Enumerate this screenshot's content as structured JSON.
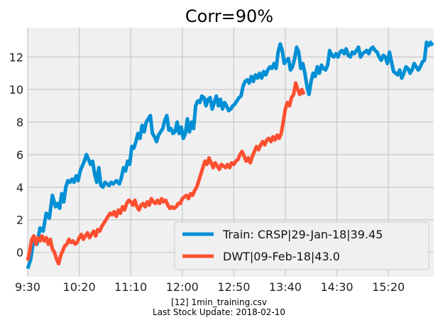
{
  "chart_data": {
    "type": "line",
    "title": "Corr=90%",
    "xlabel": "",
    "ylabel": "",
    "x_tick_labels": [
      "9:30",
      "10:20",
      "11:10",
      "12:00",
      "12:50",
      "13:40",
      "14:30",
      "15:20"
    ],
    "x_tick_minutes": [
      0,
      50,
      100,
      150,
      200,
      250,
      300,
      350
    ],
    "xlim": [
      0,
      394
    ],
    "y_ticks": [
      0,
      2,
      4,
      6,
      8,
      10,
      12
    ],
    "ylim": [
      -1.5,
      13.8
    ],
    "grid": true,
    "legend_position": "lower-right",
    "series": [
      {
        "name": "Train: CRSP|29-Jan-18|39.45",
        "color": "#008fd5",
        "points": [
          [
            0,
            -1.0
          ],
          [
            3,
            -0.4
          ],
          [
            6,
            0.9
          ],
          [
            9,
            0.5
          ],
          [
            12,
            1.5
          ],
          [
            15,
            1.3
          ],
          [
            18,
            2.4
          ],
          [
            21,
            2.1
          ],
          [
            24,
            3.5
          ],
          [
            27,
            2.8
          ],
          [
            29,
            3.0
          ],
          [
            31,
            2.7
          ],
          [
            33,
            3.6
          ],
          [
            35,
            3.1
          ],
          [
            37,
            4.0
          ],
          [
            39,
            4.4
          ],
          [
            41,
            4.3
          ],
          [
            43,
            4.5
          ],
          [
            45,
            4.3
          ],
          [
            47,
            4.7
          ],
          [
            49,
            4.4
          ],
          [
            51,
            5.0
          ],
          [
            53,
            5.3
          ],
          [
            55,
            5.6
          ],
          [
            57,
            6.0
          ],
          [
            59,
            5.7
          ],
          [
            61,
            5.4
          ],
          [
            63,
            5.6
          ],
          [
            65,
            4.8
          ],
          [
            67,
            4.3
          ],
          [
            69,
            5.2
          ],
          [
            71,
            4.1
          ],
          [
            73,
            4.0
          ],
          [
            75,
            4.3
          ],
          [
            77,
            4.2
          ],
          [
            79,
            4.1
          ],
          [
            81,
            4.3
          ],
          [
            83,
            4.2
          ],
          [
            86,
            4.4
          ],
          [
            89,
            4.2
          ],
          [
            91,
            4.6
          ],
          [
            93,
            5.2
          ],
          [
            95,
            5.0
          ],
          [
            97,
            5.6
          ],
          [
            99,
            5.4
          ],
          [
            101,
            6.5
          ],
          [
            103,
            6.4
          ],
          [
            105,
            6.8
          ],
          [
            107,
            7.3
          ],
          [
            109,
            7.0
          ],
          [
            111,
            7.8
          ],
          [
            113,
            7.4
          ],
          [
            115,
            8.0
          ],
          [
            117,
            8.2
          ],
          [
            119,
            8.4
          ],
          [
            121,
            7.3
          ],
          [
            123,
            7.1
          ],
          [
            125,
            6.8
          ],
          [
            127,
            7.2
          ],
          [
            129,
            7.4
          ],
          [
            131,
            7.6
          ],
          [
            133,
            8.1
          ],
          [
            135,
            8.4
          ],
          [
            137,
            7.5
          ],
          [
            139,
            7.6
          ],
          [
            141,
            7.3
          ],
          [
            143,
            7.4
          ],
          [
            145,
            8.0
          ],
          [
            147,
            7.3
          ],
          [
            149,
            7.7
          ],
          [
            151,
            7.0
          ],
          [
            153,
            7.3
          ],
          [
            155,
            8.2
          ],
          [
            157,
            7.4
          ],
          [
            159,
            8.0
          ],
          [
            161,
            7.6
          ],
          [
            163,
            9.0
          ],
          [
            165,
            9.3
          ],
          [
            167,
            9.2
          ],
          [
            169,
            9.6
          ],
          [
            171,
            9.5
          ],
          [
            173,
            9.0
          ],
          [
            175,
            9.4
          ],
          [
            177,
            9.5
          ],
          [
            179,
            8.8
          ],
          [
            181,
            9.2
          ],
          [
            183,
            9.6
          ],
          [
            185,
            9.0
          ],
          [
            187,
            9.4
          ],
          [
            189,
            8.8
          ],
          [
            191,
            9.2
          ],
          [
            193,
            9.0
          ],
          [
            195,
            8.7
          ],
          [
            197,
            8.8
          ],
          [
            199,
            9.0
          ],
          [
            201,
            9.1
          ],
          [
            203,
            9.3
          ],
          [
            205,
            9.5
          ],
          [
            207,
            9.6
          ],
          [
            209,
            10.2
          ],
          [
            211,
            10.5
          ],
          [
            213,
            10.6
          ],
          [
            215,
            10.4
          ],
          [
            217,
            10.8
          ],
          [
            219,
            10.5
          ],
          [
            221,
            10.9
          ],
          [
            223,
            10.7
          ],
          [
            225,
            11.0
          ],
          [
            227,
            10.7
          ],
          [
            229,
            11.1
          ],
          [
            231,
            10.9
          ],
          [
            233,
            11.2
          ],
          [
            235,
            11.4
          ],
          [
            237,
            11.3
          ],
          [
            239,
            11.6
          ],
          [
            241,
            11.3
          ],
          [
            243,
            12.3
          ],
          [
            245,
            12.8
          ],
          [
            247,
            12.4
          ],
          [
            249,
            11.6
          ],
          [
            251,
            11.8
          ],
          [
            253,
            11.9
          ],
          [
            255,
            11.2
          ],
          [
            257,
            11.4
          ],
          [
            259,
            11.9
          ],
          [
            261,
            12.6
          ],
          [
            263,
            12.3
          ],
          [
            265,
            11.3
          ],
          [
            267,
            11.6
          ],
          [
            269,
            11.0
          ],
          [
            271,
            10.2
          ],
          [
            273,
            9.7
          ],
          [
            275,
            10.5
          ],
          [
            277,
            11.0
          ],
          [
            279,
            10.8
          ],
          [
            281,
            11.4
          ],
          [
            283,
            11.0
          ],
          [
            285,
            11.5
          ],
          [
            287,
            11.3
          ],
          [
            289,
            11.2
          ],
          [
            291,
            11.5
          ],
          [
            293,
            12.4
          ],
          [
            295,
            12.1
          ],
          [
            297,
            12.0
          ],
          [
            299,
            12.2
          ],
          [
            301,
            12.0
          ],
          [
            303,
            12.3
          ],
          [
            305,
            12.4
          ],
          [
            307,
            12.2
          ],
          [
            309,
            12.5
          ],
          [
            311,
            12.1
          ],
          [
            313,
            12.0
          ],
          [
            315,
            12.3
          ],
          [
            317,
            12.2
          ],
          [
            319,
            12.4
          ],
          [
            321,
            12.6
          ],
          [
            323,
            12.0
          ],
          [
            325,
            12.2
          ],
          [
            327,
            12.3
          ],
          [
            329,
            12.4
          ],
          [
            331,
            12.2
          ],
          [
            333,
            12.5
          ],
          [
            335,
            12.6
          ],
          [
            337,
            12.4
          ],
          [
            339,
            12.3
          ],
          [
            341,
            12.0
          ],
          [
            343,
            11.8
          ],
          [
            345,
            12.1
          ],
          [
            347,
            12.0
          ],
          [
            349,
            11.6
          ],
          [
            351,
            12.3
          ],
          [
            353,
            11.7
          ],
          [
            355,
            11.1
          ],
          [
            357,
            11.0
          ],
          [
            359,
            10.9
          ],
          [
            361,
            11.2
          ],
          [
            363,
            10.7
          ],
          [
            365,
            11.0
          ],
          [
            367,
            11.4
          ],
          [
            369,
            11.3
          ],
          [
            371,
            11.0
          ],
          [
            373,
            11.2
          ],
          [
            375,
            11.6
          ],
          [
            377,
            11.4
          ],
          [
            379,
            11.2
          ],
          [
            381,
            11.4
          ],
          [
            383,
            11.7
          ],
          [
            385,
            11.8
          ],
          [
            387,
            12.9
          ],
          [
            389,
            12.7
          ],
          [
            391,
            12.9
          ],
          [
            393,
            12.7
          ]
        ]
      },
      {
        "name": "DWT|09-Feb-18|43.0",
        "color": "#fc4f30",
        "points": [
          [
            0,
            -0.5
          ],
          [
            2,
            0.1
          ],
          [
            4,
            0.8
          ],
          [
            6,
            1.0
          ],
          [
            8,
            0.5
          ],
          [
            10,
            0.9
          ],
          [
            12,
            0.7
          ],
          [
            14,
            1.0
          ],
          [
            16,
            0.7
          ],
          [
            18,
            0.9
          ],
          [
            20,
            0.5
          ],
          [
            22,
            0.8
          ],
          [
            24,
            0.2
          ],
          [
            26,
            0.0
          ],
          [
            28,
            -0.4
          ],
          [
            30,
            -0.7
          ],
          [
            32,
            -0.2
          ],
          [
            34,
            0.1
          ],
          [
            36,
            0.4
          ],
          [
            38,
            0.5
          ],
          [
            40,
            0.8
          ],
          [
            42,
            0.6
          ],
          [
            44,
            0.7
          ],
          [
            46,
            0.5
          ],
          [
            48,
            0.6
          ],
          [
            50,
            0.9
          ],
          [
            52,
            1.1
          ],
          [
            54,
            0.8
          ],
          [
            56,
            1.0
          ],
          [
            58,
            1.2
          ],
          [
            60,
            0.9
          ],
          [
            62,
            1.1
          ],
          [
            64,
            1.3
          ],
          [
            66,
            1.0
          ],
          [
            68,
            1.4
          ],
          [
            70,
            1.3
          ],
          [
            72,
            1.6
          ],
          [
            74,
            1.8
          ],
          [
            76,
            2.0
          ],
          [
            78,
            2.2
          ],
          [
            80,
            2.4
          ],
          [
            82,
            2.3
          ],
          [
            84,
            2.5
          ],
          [
            86,
            2.2
          ],
          [
            88,
            2.6
          ],
          [
            90,
            2.4
          ],
          [
            92,
            2.8
          ],
          [
            94,
            2.6
          ],
          [
            96,
            3.0
          ],
          [
            98,
            3.2
          ],
          [
            100,
            3.1
          ],
          [
            102,
            2.9
          ],
          [
            104,
            3.2
          ],
          [
            106,
            2.8
          ],
          [
            108,
            2.6
          ],
          [
            110,
            2.9
          ],
          [
            112,
            3.0
          ],
          [
            114,
            2.8
          ],
          [
            116,
            3.1
          ],
          [
            118,
            2.9
          ],
          [
            120,
            3.3
          ],
          [
            122,
            3.1
          ],
          [
            124,
            3.0
          ],
          [
            126,
            3.2
          ],
          [
            128,
            3.0
          ],
          [
            130,
            3.3
          ],
          [
            132,
            3.1
          ],
          [
            134,
            3.2
          ],
          [
            136,
            2.9
          ],
          [
            138,
            2.7
          ],
          [
            140,
            2.8
          ],
          [
            142,
            2.7
          ],
          [
            144,
            2.8
          ],
          [
            146,
            3.0
          ],
          [
            148,
            3.0
          ],
          [
            150,
            3.3
          ],
          [
            152,
            3.4
          ],
          [
            154,
            3.5
          ],
          [
            156,
            3.3
          ],
          [
            158,
            3.6
          ],
          [
            160,
            3.5
          ],
          [
            162,
            3.8
          ],
          [
            164,
            4.0
          ],
          [
            166,
            4.4
          ],
          [
            168,
            4.8
          ],
          [
            170,
            5.2
          ],
          [
            172,
            5.6
          ],
          [
            174,
            5.4
          ],
          [
            176,
            5.8
          ],
          [
            178,
            5.5
          ],
          [
            180,
            5.2
          ],
          [
            182,
            5.5
          ],
          [
            184,
            5.3
          ],
          [
            186,
            5.1
          ],
          [
            188,
            5.4
          ],
          [
            190,
            5.3
          ],
          [
            192,
            5.2
          ],
          [
            194,
            5.4
          ],
          [
            196,
            5.2
          ],
          [
            198,
            5.5
          ],
          [
            200,
            5.4
          ],
          [
            202,
            5.6
          ],
          [
            204,
            5.7
          ],
          [
            206,
            6.0
          ],
          [
            208,
            6.2
          ],
          [
            210,
            5.9
          ],
          [
            212,
            5.6
          ],
          [
            214,
            5.8
          ],
          [
            216,
            5.5
          ],
          [
            218,
            5.9
          ],
          [
            220,
            6.2
          ],
          [
            222,
            6.5
          ],
          [
            224,
            6.3
          ],
          [
            226,
            6.6
          ],
          [
            228,
            6.8
          ],
          [
            230,
            6.6
          ],
          [
            232,
            6.9
          ],
          [
            234,
            7.0
          ],
          [
            236,
            6.8
          ],
          [
            238,
            7.1
          ],
          [
            240,
            6.9
          ],
          [
            242,
            7.2
          ],
          [
            244,
            7.0
          ],
          [
            246,
            7.3
          ],
          [
            248,
            8.0
          ],
          [
            250,
            8.8
          ],
          [
            252,
            9.2
          ],
          [
            254,
            9.0
          ],
          [
            256,
            9.5
          ],
          [
            258,
            9.7
          ],
          [
            260,
            10.4
          ],
          [
            262,
            10.0
          ],
          [
            264,
            9.7
          ],
          [
            266,
            10.0
          ],
          [
            268,
            9.7
          ]
        ]
      }
    ]
  },
  "footer": {
    "line1": "[12] 1min_training.csv",
    "line2": "Last Stock Update: 2018-02-10"
  },
  "colors": {
    "axes_background": "#f0f0f0",
    "grid": "#cbcbcb"
  }
}
